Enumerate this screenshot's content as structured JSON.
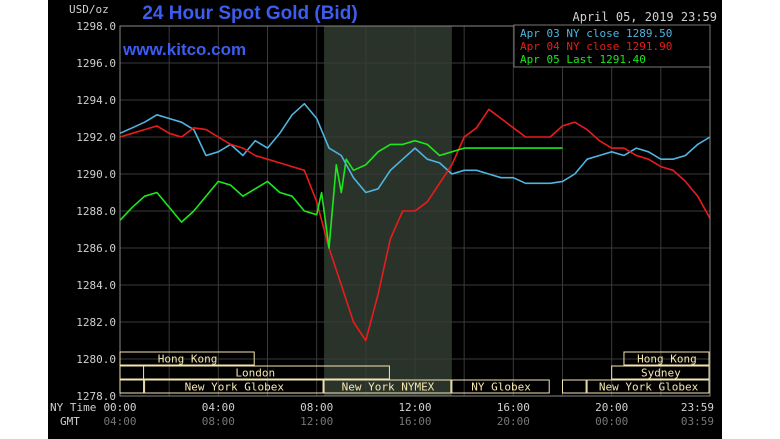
{
  "header": {
    "title": "24 Hour Spot Gold (Bid)",
    "watermark": "www.kitco.com",
    "date": "April 05, 2019 23:59",
    "unit": "USD/oz"
  },
  "colors": {
    "background": "#000000",
    "grid": "#3a3a3a",
    "title": "#3d5cf0",
    "watermark": "#3d5cf0",
    "series_apr03": "#4fb4e0",
    "series_apr04": "#e81c1c",
    "series_apr05": "#1ce81c",
    "market_bar": "#f5e6b0",
    "text": "#d0d0d0"
  },
  "time_axis": {
    "ny_label": "NY Time",
    "gmt_label": "GMT",
    "ny_ticks": [
      "00:00",
      "04:00",
      "08:00",
      "12:00",
      "16:00",
      "20:00",
      "23:59"
    ],
    "gmt_ticks": [
      "04:00",
      "08:00",
      "12:00",
      "16:00",
      "20:00",
      "00:00",
      "03:59"
    ]
  },
  "markets": [
    {
      "label": "Hong Kong",
      "start": 0.0,
      "end": 5.5,
      "row": 0
    },
    {
      "label": "Hong Kong",
      "start": 20.5,
      "end": 24.0,
      "row": 0
    },
    {
      "label": "Sydney",
      "start": 20.0,
      "end": 24.0,
      "row": 1
    },
    {
      "label": "London",
      "start": 0.0,
      "end": 11.0,
      "row": 1
    },
    {
      "label": "",
      "start": 0.0,
      "end": 1.0,
      "row": 1
    },
    {
      "label": "",
      "start": 0.0,
      "end": 1.0,
      "row": 2
    },
    {
      "label": "New York Globex",
      "start": 1.0,
      "end": 8.3,
      "row": 2
    },
    {
      "label": "New York NYMEX",
      "start": 8.3,
      "end": 13.5,
      "row": 2
    },
    {
      "label": "NY Globex",
      "start": 13.5,
      "end": 17.5,
      "row": 2
    },
    {
      "label": "",
      "start": 18.0,
      "end": 19.0,
      "row": 2
    },
    {
      "label": "New York Globex",
      "start": 19.0,
      "end": 24.0,
      "row": 2
    }
  ],
  "chart_data": {
    "type": "line",
    "title": "24 Hour Spot Gold (Bid)",
    "ylabel": "USD/oz",
    "xlabel": "",
    "ylim": [
      1278.0,
      1298.0
    ],
    "xlim": [
      0,
      24
    ],
    "y_ticks": [
      "1278.0",
      "1280.0",
      "1282.0",
      "1284.0",
      "1286.0",
      "1288.0",
      "1290.0",
      "1292.0",
      "1294.0",
      "1296.0",
      "1298.0"
    ],
    "grid": true,
    "legend_position": "top-right",
    "shaded_region": [
      8.3,
      13.5
    ],
    "series": [
      {
        "name": "Apr 03 NY close 1289.50",
        "color": "#4fb4e0",
        "x": [
          0,
          0.5,
          1.0,
          1.5,
          2.0,
          2.5,
          3.0,
          3.5,
          4.0,
          4.5,
          5.0,
          5.5,
          6.0,
          6.5,
          7.0,
          7.5,
          8.0,
          8.5,
          9.0,
          9.5,
          10.0,
          10.5,
          11.0,
          11.5,
          12.0,
          12.5,
          13.0,
          13.5,
          14.0,
          14.5,
          15.0,
          15.5,
          16.0,
          16.5,
          17.0,
          17.5,
          18.0,
          18.5,
          19.0,
          19.5,
          20.0,
          20.5,
          21.0,
          21.5,
          22.0,
          22.5,
          23.0,
          23.5,
          24.0
        ],
        "values": [
          1292.2,
          1292.5,
          1292.8,
          1293.2,
          1293.0,
          1292.8,
          1292.4,
          1291.0,
          1291.2,
          1291.6,
          1291.0,
          1291.8,
          1291.4,
          1292.2,
          1293.2,
          1293.8,
          1293.0,
          1291.4,
          1291.0,
          1289.8,
          1289.0,
          1289.2,
          1290.2,
          1290.8,
          1291.4,
          1290.8,
          1290.6,
          1290.0,
          1290.2,
          1290.2,
          1290.0,
          1289.8,
          1289.8,
          1289.5,
          1289.5,
          1289.5,
          1289.6,
          1290.0,
          1290.8,
          1291.0,
          1291.2,
          1291.0,
          1291.4,
          1291.2,
          1290.8,
          1290.8,
          1291.0,
          1291.6,
          1292.0
        ]
      },
      {
        "name": "Apr 04 NY close 1291.90",
        "color": "#e81c1c",
        "x": [
          0,
          0.5,
          1.0,
          1.5,
          2.0,
          2.5,
          3.0,
          3.5,
          4.0,
          4.5,
          5.0,
          5.5,
          6.0,
          6.5,
          7.0,
          7.5,
          8.0,
          8.5,
          9.0,
          9.5,
          10.0,
          10.5,
          11.0,
          11.5,
          12.0,
          12.5,
          13.0,
          13.5,
          14.0,
          14.5,
          15.0,
          15.5,
          16.0,
          16.5,
          17.0,
          17.5,
          18.0,
          18.5,
          19.0,
          19.5,
          20.0,
          20.5,
          21.0,
          21.5,
          22.0,
          22.5,
          23.0,
          23.5,
          24.0
        ],
        "values": [
          1292.0,
          1292.2,
          1292.4,
          1292.6,
          1292.2,
          1292.0,
          1292.5,
          1292.4,
          1292.0,
          1291.6,
          1291.4,
          1291.0,
          1290.8,
          1290.6,
          1290.4,
          1290.2,
          1288.5,
          1286.0,
          1284.0,
          1282.0,
          1281.0,
          1283.5,
          1286.5,
          1288.0,
          1288.0,
          1288.5,
          1289.5,
          1290.5,
          1292.0,
          1292.5,
          1293.5,
          1293.0,
          1292.5,
          1292.0,
          1292.0,
          1292.0,
          1292.6,
          1292.8,
          1292.4,
          1291.8,
          1291.4,
          1291.4,
          1291.0,
          1290.8,
          1290.4,
          1290.2,
          1289.6,
          1288.8,
          1287.6
        ]
      },
      {
        "name": "Apr 05 Last 1291.40",
        "color": "#1ce81c",
        "x": [
          0,
          0.5,
          1.0,
          1.5,
          2.0,
          2.5,
          3.0,
          3.5,
          4.0,
          4.5,
          5.0,
          5.5,
          6.0,
          6.5,
          7.0,
          7.5,
          8.0,
          8.2,
          8.5,
          8.8,
          9.0,
          9.2,
          9.5,
          10.0,
          10.5,
          11.0,
          11.5,
          12.0,
          12.5,
          13.0,
          13.5,
          14.0,
          14.5,
          15.0,
          15.5,
          16.0,
          16.5,
          17.0,
          17.5,
          18.0
        ],
        "values": [
          1287.5,
          1288.2,
          1288.8,
          1289.0,
          1288.2,
          1287.4,
          1288.0,
          1288.8,
          1289.6,
          1289.4,
          1288.8,
          1289.2,
          1289.6,
          1289.0,
          1288.8,
          1288.0,
          1287.8,
          1289.0,
          1286.0,
          1290.5,
          1289.0,
          1290.8,
          1290.2,
          1290.5,
          1291.2,
          1291.6,
          1291.6,
          1291.8,
          1291.6,
          1291.0,
          1291.2,
          1291.4,
          1291.4,
          1291.4,
          1291.4,
          1291.4,
          1291.4,
          1291.4,
          1291.4,
          1291.4
        ]
      }
    ]
  }
}
